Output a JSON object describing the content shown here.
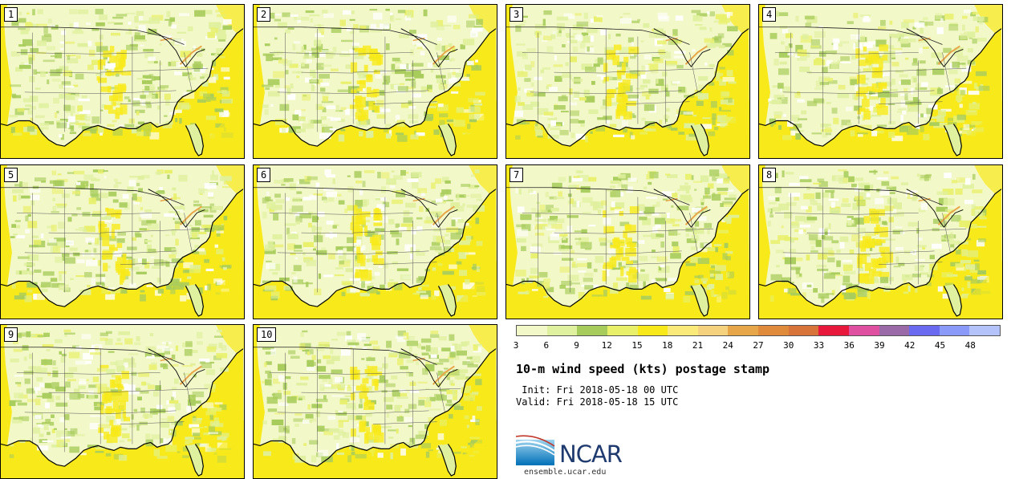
{
  "panels": [
    {
      "label": "1"
    },
    {
      "label": "2"
    },
    {
      "label": "3"
    },
    {
      "label": "4"
    },
    {
      "label": "5"
    },
    {
      "label": "6"
    },
    {
      "label": "7"
    },
    {
      "label": "8"
    },
    {
      "label": "9"
    },
    {
      "label": "10"
    }
  ],
  "colorbar": {
    "ticks": [
      "3",
      "6",
      "9",
      "12",
      "15",
      "18",
      "21",
      "24",
      "27",
      "30",
      "33",
      "36",
      "39",
      "42",
      "45",
      "48"
    ],
    "colors": [
      "#f3f8c8",
      "#dff09e",
      "#a8cc5c",
      "#e8f06a",
      "#f8ea1a",
      "#faea7a",
      "#f5d27e",
      "#e8a64a",
      "#e08a3c",
      "#d8743a",
      "#e8183c",
      "#e050a0",
      "#9a6aa8",
      "#6a6af0",
      "#8a9af8",
      "#b4c4fa"
    ]
  },
  "title": "10-m wind speed (kts) postage stamp",
  "init": " Init: Fri 2018-05-18 00 UTC",
  "valid": "Valid: Fri 2018-05-18 15 UTC",
  "logo": {
    "text": "NCAR"
  },
  "url": "ensemble.ucar.edu"
}
